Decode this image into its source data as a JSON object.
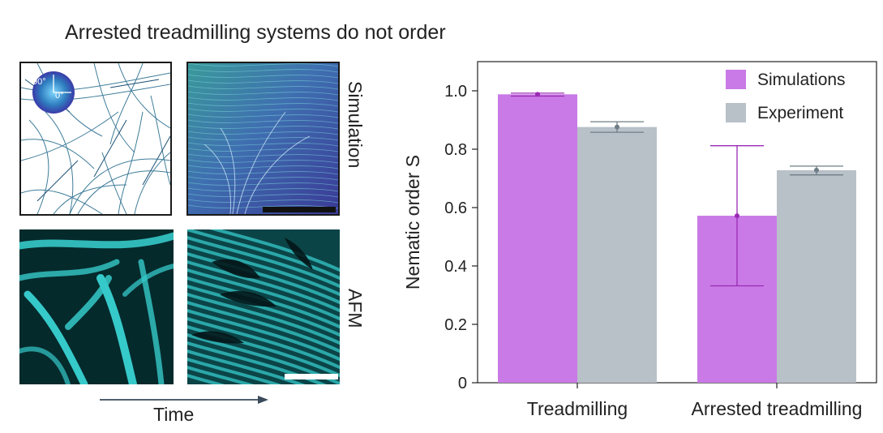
{
  "figure": {
    "headline": "Arrested treadmilling systems do not order",
    "row_labels": [
      "Simulation",
      "AFM"
    ],
    "time_label": "Time",
    "colorwheel_labels": [
      "90°",
      "0°"
    ]
  },
  "colors": {
    "simulations": "#c97ae6",
    "experiment": "#b8c0c8",
    "sim_errorbar": "#9a2bb5",
    "exp_errorbar": "#6f7e86",
    "afm_cyan": "#36c9c9"
  },
  "chart_data": {
    "type": "bar",
    "categories": [
      "Treadmilling",
      "Arrested treadmilling"
    ],
    "series": [
      {
        "name": "Simulations",
        "values": [
          0.988,
          0.572
        ],
        "err_low": [
          0.982,
          0.332
        ],
        "err_high": [
          0.992,
          0.812
        ]
      },
      {
        "name": "Experiment",
        "values": [
          0.876,
          0.728
        ],
        "err_low": [
          0.858,
          0.712
        ],
        "err_high": [
          0.894,
          0.742
        ]
      }
    ],
    "xlabel": "",
    "ylabel": "Nematic order S",
    "ylim": [
      0,
      1.1
    ],
    "yticks": [
      0,
      0.2,
      0.4,
      0.6,
      0.8,
      1.0
    ],
    "ytick_labels": [
      "0",
      "0.2",
      "0.4",
      "0.6",
      "0.8",
      "1.0"
    ],
    "legend_position": "top-right",
    "grid": false
  }
}
